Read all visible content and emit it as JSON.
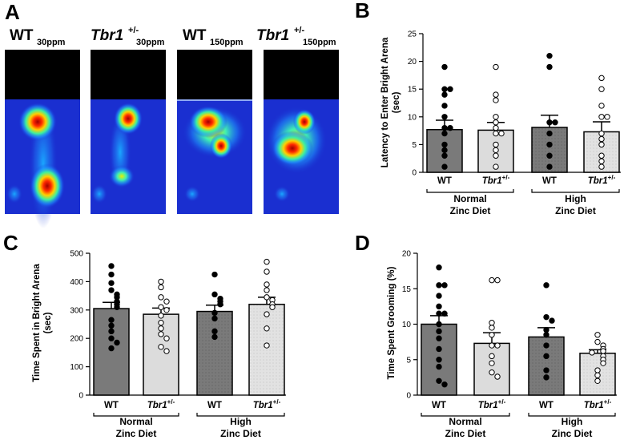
{
  "colors": {
    "bar_wt": "#7a7a7a",
    "bar_tbr1": "#dcdcdc",
    "dot_filled": "#000000",
    "dot_open": "#ffffff",
    "heatmap_background": "#1a2fd0",
    "heatmap_top": "#000000"
  },
  "panel_a": {
    "letter": "A",
    "maps": [
      {
        "name": "WT",
        "italic": false,
        "superscript": "",
        "subscript": "30ppm"
      },
      {
        "name": "Tbr1",
        "italic": true,
        "superscript": "+/-",
        "subscript": "30ppm"
      },
      {
        "name": "WT",
        "italic": false,
        "superscript": "",
        "subscript": "150ppm"
      },
      {
        "name": "Tbr1",
        "italic": true,
        "superscript": "+/-",
        "subscript": "150ppm"
      }
    ]
  },
  "groups": {
    "normal": [
      "Normal",
      "Zinc Diet"
    ],
    "high": [
      "High",
      "Zinc Diet"
    ]
  },
  "chart_data": [
    {
      "panel": "B",
      "type": "bar",
      "ylabel_lines": [
        "Latency to Enter Bright Arena",
        "(sec)"
      ],
      "ylim": [
        0,
        25
      ],
      "yticks": [
        0,
        5,
        10,
        15,
        20,
        25
      ],
      "categories": [
        "WT",
        "Tbr1+/-",
        "WT",
        "Tbr1+/-"
      ],
      "means": [
        7.7,
        7.6,
        8.1,
        7.3
      ],
      "sem": [
        1.7,
        1.4,
        2.2,
        1.8
      ],
      "points": [
        [
          19,
          15,
          15,
          14,
          12,
          10,
          8,
          8,
          7,
          5,
          4,
          3,
          1
        ],
        [
          19,
          14,
          13,
          10,
          9,
          8,
          7,
          7,
          5,
          4,
          3,
          1
        ],
        [
          21,
          19,
          9,
          9,
          7,
          5,
          3,
          1
        ],
        [
          17,
          15,
          12,
          10,
          10,
          7,
          6,
          5,
          3,
          2,
          1
        ]
      ]
    },
    {
      "panel": "C",
      "type": "bar",
      "ylabel_lines": [
        "Time Spent in Bright Arena",
        "(sec)"
      ],
      "ylim": [
        0,
        500
      ],
      "yticks": [
        0,
        100,
        200,
        300,
        400,
        500
      ],
      "categories": [
        "WT",
        "Tbr1+/-",
        "WT",
        "Tbr1+/-"
      ],
      "means": [
        305,
        285,
        295,
        320
      ],
      "sem": [
        22,
        22,
        22,
        25
      ],
      "points": [
        [
          455,
          425,
          395,
          370,
          355,
          345,
          330,
          320,
          310,
          265,
          245,
          225,
          200,
          185,
          165
        ],
        [
          400,
          380,
          345,
          330,
          310,
          300,
          280,
          255,
          235,
          215,
          200,
          170,
          155
        ],
        [
          425,
          355,
          340,
          330,
          320,
          290,
          270,
          225,
          205
        ],
        [
          470,
          435,
          390,
          370,
          345,
          335,
          320,
          310,
          285,
          235,
          175
        ]
      ]
    },
    {
      "panel": "D",
      "type": "bar",
      "ylabel_lines": [
        "Time Spent Grooming (%)"
      ],
      "ylim": [
        0,
        20
      ],
      "yticks": [
        0,
        5,
        10,
        15,
        20
      ],
      "categories": [
        "WT",
        "Tbr1+/-",
        "WT",
        "Tbr1+/-"
      ],
      "means": [
        10.0,
        7.3,
        8.2,
        5.9
      ],
      "sem": [
        1.2,
        1.5,
        1.3,
        0.5
      ],
      "points": [
        [
          18,
          15.5,
          15.5,
          14,
          12.5,
          11.5,
          11.5,
          10,
          9,
          8,
          6.5,
          5,
          4,
          2,
          1.5
        ],
        [
          16.2,
          16.2,
          10.2,
          9.5,
          8.5,
          7,
          7,
          5.5,
          4.5,
          3.2,
          2.6
        ],
        [
          15.5,
          11,
          10.5,
          9.2,
          8.5,
          7,
          5.5,
          3.5,
          2.5
        ],
        [
          8.5,
          7.5,
          7,
          6.5,
          6.2,
          6,
          5.5,
          5,
          4.5,
          3.5,
          2.8,
          2
        ]
      ]
    }
  ]
}
